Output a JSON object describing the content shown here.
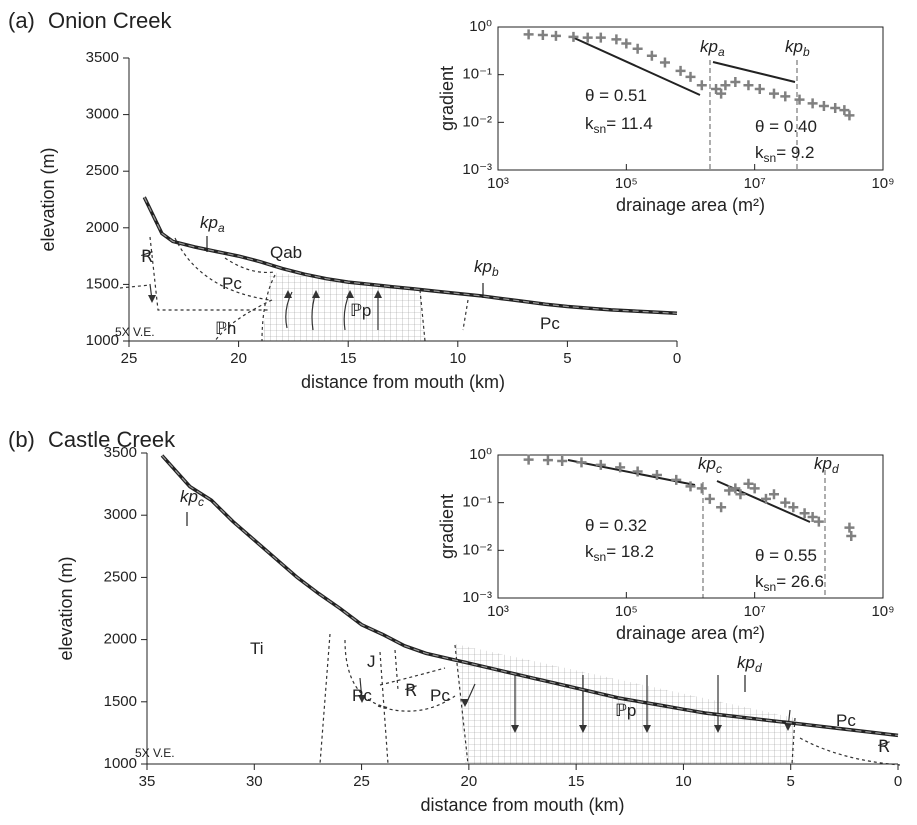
{
  "chart_data": [
    {
      "type": "line",
      "label": "(a)",
      "title": "Onion Creek",
      "xlabel": "distance from mouth (km)",
      "ylabel": "elevation (m)",
      "x": [
        24.3,
        23.5,
        23,
        22,
        21,
        20,
        19,
        18,
        17,
        16,
        15,
        14,
        13,
        12,
        11,
        10,
        9,
        8,
        7,
        6,
        5,
        4,
        3,
        2,
        1,
        0
      ],
      "values": [
        2270,
        1950,
        1880,
        1830,
        1790,
        1750,
        1700,
        1640,
        1590,
        1550,
        1520,
        1500,
        1480,
        1460,
        1440,
        1420,
        1400,
        1375,
        1350,
        1325,
        1305,
        1290,
        1275,
        1265,
        1255,
        1245
      ],
      "color": "#222222",
      "xlim": [
        25,
        0
      ],
      "xticks": [
        25,
        20,
        15,
        10,
        5,
        0
      ],
      "ylim": [
        1000,
        3500
      ],
      "yticks": [
        1000,
        1500,
        2000,
        2500,
        3000,
        3500
      ],
      "annotations": [
        {
          "text": "Ꞧ"
        },
        {
          "text": "Pc"
        },
        {
          "text": "Qab"
        },
        {
          "text": "ℙh"
        },
        {
          "text": "ℙp"
        },
        {
          "text": "Pc"
        },
        {
          "text": "5X V.E."
        },
        {
          "text": "kp",
          "sub": "a"
        },
        {
          "text": "kp",
          "sub": "b"
        }
      ]
    },
    {
      "type": "scatter",
      "xlabel": "drainage area (m²)",
      "ylabel": "gradient",
      "log": true,
      "x": [
        3000,
        5000,
        8000,
        15000,
        25000,
        40000,
        70000,
        100000,
        150000,
        250000,
        400000,
        700000,
        1000000,
        1500000,
        2500000,
        3000000,
        3500000,
        5000000,
        8000000,
        12000000,
        20000000,
        30000000,
        50000000,
        80000000,
        120000000,
        180000000,
        250000000,
        300000000
      ],
      "y": [
        0.7,
        0.68,
        0.65,
        0.62,
        0.6,
        0.6,
        0.55,
        0.45,
        0.35,
        0.25,
        0.18,
        0.12,
        0.09,
        0.06,
        0.05,
        0.04,
        0.06,
        0.07,
        0.06,
        0.05,
        0.04,
        0.035,
        0.03,
        0.025,
        0.022,
        0.02,
        0.018,
        0.014
      ],
      "color": "#808080",
      "xlim": [
        1000,
        1000000000
      ],
      "xticks": [
        {
          "value": 1000,
          "label": "10³"
        },
        {
          "value": 100000,
          "label": "10⁵"
        },
        {
          "value": 10000000,
          "label": "10⁷"
        },
        {
          "value": 1000000000,
          "label": "10⁹"
        }
      ],
      "ylim": [
        0.001,
        1
      ],
      "yticks": [
        {
          "value": 0.001,
          "label": "10⁻³"
        },
        {
          "value": 0.01,
          "label": "10⁻²"
        },
        {
          "value": 0.1,
          "label": "10⁻¹"
        },
        {
          "value": 1,
          "label": "10⁰"
        }
      ],
      "annotations": [
        {
          "text": "θ = 0.51"
        },
        {
          "text": "k",
          "sub": "sn",
          "after": "= 11.4"
        },
        {
          "text": "θ = 0.40"
        },
        {
          "text": "k",
          "sub": "sn",
          "after": "= 9.2"
        },
        {
          "text": "kp",
          "sub": "a"
        },
        {
          "text": "kp",
          "sub": "b"
        }
      ]
    },
    {
      "type": "line",
      "label": "(b)",
      "title": "Castle Creek",
      "xlabel": "distance from mouth (km)",
      "ylabel": "elevation (m)",
      "x": [
        34.3,
        33,
        32,
        31,
        30,
        29,
        28,
        27,
        26,
        25,
        24,
        23,
        22,
        21,
        20,
        19,
        18,
        17,
        16,
        15,
        14,
        13,
        12,
        11,
        10,
        9,
        8,
        7,
        6,
        5,
        4,
        3,
        2,
        1,
        0
      ],
      "values": [
        3480,
        3230,
        3120,
        2950,
        2800,
        2650,
        2500,
        2370,
        2250,
        2120,
        2040,
        1950,
        1890,
        1850,
        1810,
        1770,
        1730,
        1690,
        1650,
        1610,
        1570,
        1530,
        1500,
        1470,
        1440,
        1410,
        1390,
        1370,
        1350,
        1330,
        1310,
        1290,
        1270,
        1250,
        1230
      ],
      "color": "#222222",
      "xlim": [
        35,
        0
      ],
      "xticks": [
        35,
        30,
        25,
        20,
        15,
        10,
        5,
        0
      ],
      "ylim": [
        1000,
        3500
      ],
      "yticks": [
        1000,
        1500,
        2000,
        2500,
        3000,
        3500
      ],
      "annotations": [
        {
          "text": "Ti"
        },
        {
          "text": "Pc"
        },
        {
          "text": "J"
        },
        {
          "text": "Ꞧ"
        },
        {
          "text": "Pc"
        },
        {
          "text": "ℙp"
        },
        {
          "text": "Pc"
        },
        {
          "text": "Ꞧ"
        },
        {
          "text": "5X V.E."
        },
        {
          "text": "kp",
          "sub": "c"
        },
        {
          "text": "kp",
          "sub": "d"
        }
      ]
    },
    {
      "type": "scatter",
      "xlabel": "drainage area (m²)",
      "ylabel": "gradient",
      "log": true,
      "x": [
        3000,
        6000,
        10000,
        20000,
        40000,
        80000,
        150000,
        300000,
        600000,
        1000000,
        1500000,
        2000000,
        3000000,
        4000000,
        5000000,
        6000000,
        8000000,
        10000000,
        15000000,
        20000000,
        30000000,
        40000000,
        60000000,
        80000000,
        100000000,
        300000000,
        320000000
      ],
      "y": [
        0.8,
        0.78,
        0.75,
        0.7,
        0.62,
        0.55,
        0.45,
        0.38,
        0.3,
        0.22,
        0.2,
        0.12,
        0.08,
        0.18,
        0.2,
        0.15,
        0.25,
        0.2,
        0.12,
        0.15,
        0.1,
        0.08,
        0.06,
        0.05,
        0.04,
        0.03,
        0.02
      ],
      "color": "#808080",
      "xlim": [
        1000,
        1000000000
      ],
      "xticks": [
        {
          "value": 1000,
          "label": "10³"
        },
        {
          "value": 100000,
          "label": "10⁵"
        },
        {
          "value": 10000000,
          "label": "10⁷"
        },
        {
          "value": 1000000000,
          "label": "10⁹"
        }
      ],
      "ylim": [
        0.001,
        1
      ],
      "yticks": [
        {
          "value": 0.001,
          "label": "10⁻³"
        },
        {
          "value": 0.01,
          "label": "10⁻²"
        },
        {
          "value": 0.1,
          "label": "10⁻¹"
        },
        {
          "value": 1,
          "label": "10⁰"
        }
      ],
      "annotations": [
        {
          "text": "θ = 0.32"
        },
        {
          "text": "k",
          "sub": "sn",
          "after": "= 18.2"
        },
        {
          "text": "θ = 0.55"
        },
        {
          "text": "k",
          "sub": "sn",
          "after": "= 26.6"
        },
        {
          "text": "kp",
          "sub": "c"
        },
        {
          "text": "kp",
          "sub": "d"
        }
      ]
    }
  ]
}
